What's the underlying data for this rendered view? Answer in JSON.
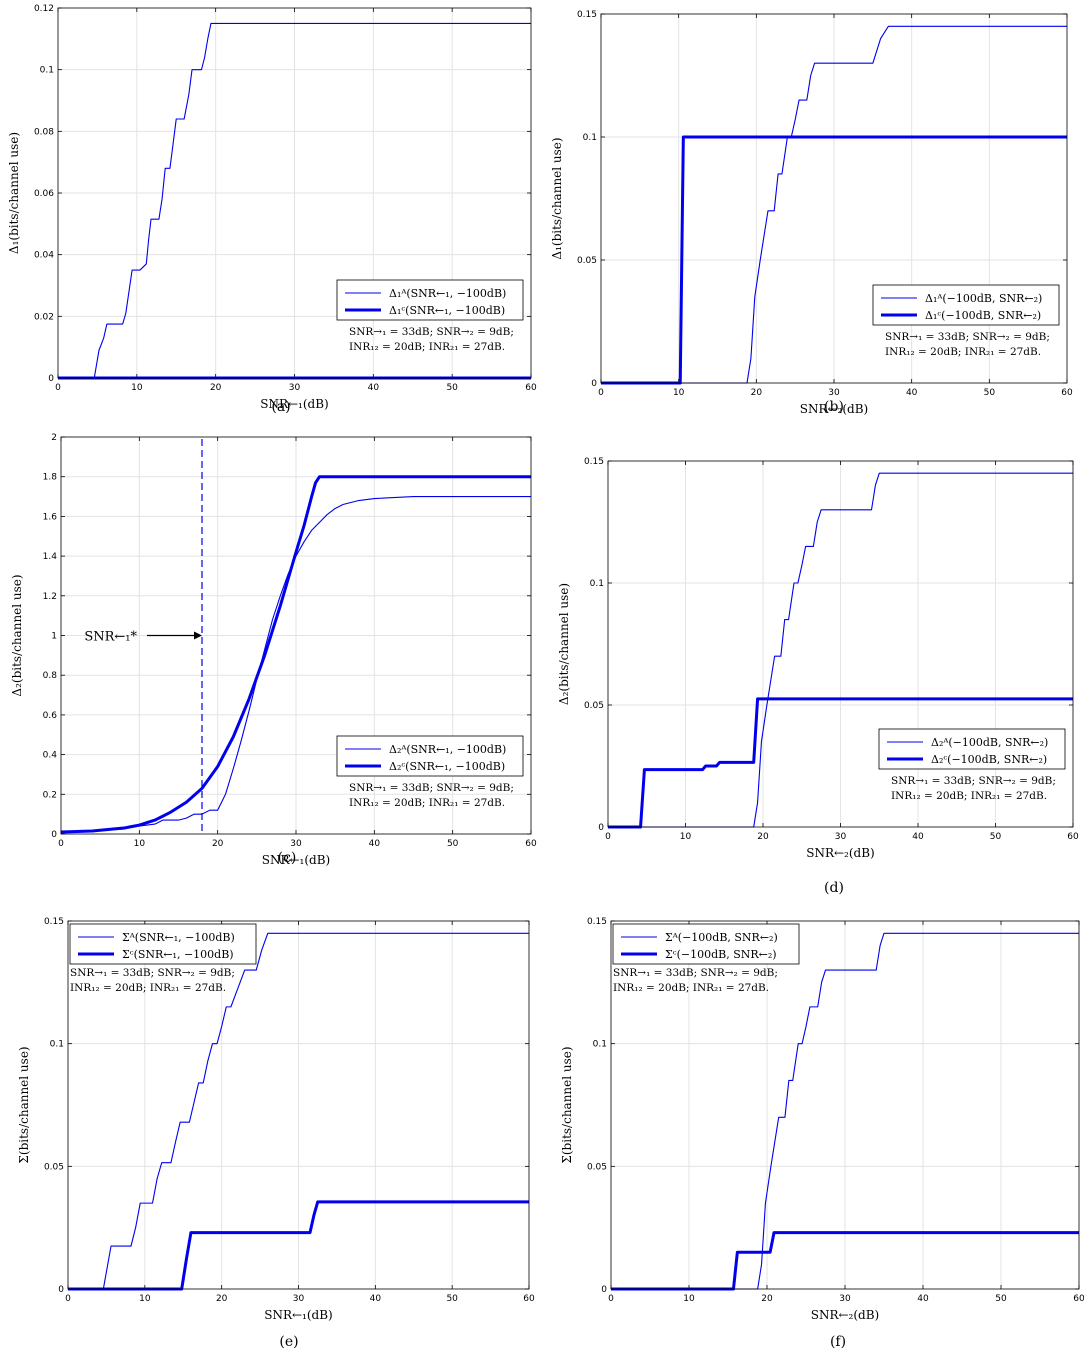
{
  "colors": {
    "series": "#0000ee",
    "axis": "#000000",
    "grid": "#e3e3e3"
  },
  "chart_data": [
    {
      "id": "a",
      "type": "line",
      "panel_label": "(a)",
      "xlabel": "SNR←₁(dB)",
      "ylabel": "Δ₁(bits/channel use)",
      "xlim": [
        0,
        60
      ],
      "ylim": [
        0,
        0.12
      ],
      "xticks": [
        0,
        10,
        20,
        30,
        40,
        50,
        60
      ],
      "yticks": [
        0,
        0.02,
        0.04,
        0.06,
        0.08,
        0.1,
        0.12
      ],
      "ytick_labels": [
        "0",
        "0.02",
        "0.04",
        "0.06",
        "0.08",
        "0.1",
        "0.12"
      ],
      "grid": true,
      "legend_position": "lower-right",
      "notes": [
        "SNR→₁ = 33dB; SNR→₂ = 9dB;",
        "INR₁₂ = 20dB; INR₂₁ = 27dB."
      ],
      "series": [
        {
          "name": "Δ₁ᴬ(SNR←₁, −100dB)",
          "width": "thin",
          "x": [
            0,
            4.6,
            5.2,
            5.8,
            6.2,
            8.2,
            8.6,
            9.0,
            9.4,
            10.4,
            11.2,
            11.5,
            11.8,
            12.8,
            13.2,
            13.6,
            14.2,
            14.6,
            15.0,
            16.0,
            16.6,
            17.0,
            17.4,
            18.2,
            18.6,
            19.0,
            19.4,
            19.8,
            60
          ],
          "y": [
            0,
            0,
            0.009,
            0.013,
            0.0175,
            0.0175,
            0.021,
            0.028,
            0.035,
            0.035,
            0.037,
            0.045,
            0.0515,
            0.0515,
            0.058,
            0.068,
            0.068,
            0.076,
            0.084,
            0.084,
            0.092,
            0.1,
            0.1,
            0.1,
            0.104,
            0.11,
            0.115,
            0.115,
            0.115
          ]
        },
        {
          "name": "Δ₁ᶜ(SNR←₁, −100dB)",
          "width": "thick",
          "x": [
            0,
            60
          ],
          "y": [
            0,
            0
          ]
        }
      ]
    },
    {
      "id": "b",
      "type": "line",
      "panel_label": "(b)",
      "xlabel": "SNR←₂(dB)",
      "ylabel": "Δ₁(bits/channel use)",
      "xlim": [
        0,
        60
      ],
      "ylim": [
        0,
        0.15
      ],
      "xticks": [
        0,
        10,
        20,
        30,
        40,
        50,
        60
      ],
      "yticks": [
        0,
        0.05,
        0.1,
        0.15
      ],
      "ytick_labels": [
        "0",
        "0.05",
        "0.1",
        "0.15"
      ],
      "grid": true,
      "legend_position": "lower-right",
      "notes": [
        "SNR→₁ = 33dB; SNR→₂ = 9dB;",
        "INR₁₂ = 20dB; INR₂₁ = 27dB."
      ],
      "series": [
        {
          "name": "Δ₁ᴬ(−100dB, SNR←₂)",
          "width": "thin",
          "x": [
            0,
            18.8,
            19.3,
            19.8,
            20.5,
            21.0,
            21.5,
            22.3,
            22.8,
            23.3,
            24.0,
            24.5,
            25.0,
            25.5,
            26.5,
            27.0,
            27.5,
            28.5,
            35.0,
            35.5,
            36.0,
            37.0,
            60
          ],
          "y": [
            0,
            0,
            0.01,
            0.035,
            0.05,
            0.06,
            0.07,
            0.07,
            0.085,
            0.085,
            0.1,
            0.1,
            0.107,
            0.115,
            0.115,
            0.125,
            0.13,
            0.13,
            0.13,
            0.135,
            0.14,
            0.145,
            0.145
          ]
        },
        {
          "name": "Δ₁ᶜ(−100dB, SNR←₂)",
          "width": "thick",
          "x": [
            0,
            10.2,
            10.6,
            60
          ],
          "y": [
            0,
            0,
            0.1,
            0.1
          ]
        }
      ]
    },
    {
      "id": "c",
      "type": "line",
      "panel_label": "(c)",
      "xlabel": "SNR←₁(dB)",
      "ylabel": "Δ₂(bits/channel use)",
      "xlim": [
        0,
        60
      ],
      "ylim": [
        0,
        2
      ],
      "xticks": [
        0,
        10,
        20,
        30,
        40,
        50,
        60
      ],
      "yticks": [
        0,
        0.2,
        0.4,
        0.6,
        0.8,
        1,
        1.2,
        1.4,
        1.6,
        1.8,
        2
      ],
      "ytick_labels": [
        "0",
        "0.2",
        "0.4",
        "0.6",
        "0.8",
        "1",
        "1.2",
        "1.4",
        "1.6",
        "1.8",
        "2"
      ],
      "grid": true,
      "legend_position": "lower-right",
      "notes": [
        "SNR→₁ = 33dB; SNR→₂ = 9dB;",
        "INR₁₂ = 20dB; INR₂₁ = 27dB."
      ],
      "annotation": {
        "text": "SNR←₁*",
        "x_line": 18,
        "arrow_y": 1
      },
      "series": [
        {
          "name": "Δ₂ᴬ(SNR←₁, −100dB)",
          "width": "thin",
          "x": [
            0,
            4,
            8,
            10,
            12,
            13,
            14,
            15,
            16,
            17,
            18,
            19,
            20,
            21,
            22,
            23,
            24,
            25,
            26,
            27,
            28,
            29,
            30,
            31,
            32,
            33,
            34,
            35,
            36,
            38,
            40,
            45,
            50,
            60
          ],
          "y": [
            0.01,
            0.015,
            0.025,
            0.04,
            0.05,
            0.07,
            0.07,
            0.07,
            0.08,
            0.1,
            0.1,
            0.12,
            0.12,
            0.2,
            0.33,
            0.47,
            0.62,
            0.78,
            0.93,
            1.08,
            1.2,
            1.31,
            1.4,
            1.47,
            1.53,
            1.57,
            1.61,
            1.64,
            1.66,
            1.68,
            1.69,
            1.7,
            1.7,
            1.7
          ]
        },
        {
          "name": "Δ₂ᶜ(SNR←₁, −100dB)",
          "width": "thick",
          "x": [
            0,
            4,
            8,
            10,
            12,
            14,
            16,
            18,
            20,
            22,
            24,
            26,
            28,
            30,
            31,
            32,
            32.5,
            33,
            60
          ],
          "y": [
            0.01,
            0.015,
            0.03,
            0.045,
            0.07,
            0.11,
            0.16,
            0.23,
            0.34,
            0.49,
            0.68,
            0.9,
            1.15,
            1.42,
            1.55,
            1.7,
            1.77,
            1.8,
            1.8
          ]
        }
      ]
    },
    {
      "id": "d",
      "type": "line",
      "panel_label": "(d)",
      "xlabel": "SNR←₂(dB)",
      "ylabel": "Δ₂(bits/channel use)",
      "xlim": [
        0,
        60
      ],
      "ylim": [
        0,
        0.15
      ],
      "xticks": [
        0,
        10,
        20,
        30,
        40,
        50,
        60
      ],
      "yticks": [
        0,
        0.05,
        0.1,
        0.15
      ],
      "ytick_labels": [
        "0",
        "0.05",
        "0.1",
        "0.15"
      ],
      "grid": true,
      "legend_position": "lower-right",
      "notes": [
        "SNR→₁ = 33dB; SNR→₂ = 9dB;",
        "INR₁₂ = 20dB; INR₂₁ = 27dB."
      ],
      "series": [
        {
          "name": "Δ₂ᴬ(−100dB, SNR←₂)",
          "width": "thin",
          "x": [
            0,
            18.8,
            19.3,
            19.8,
            20.5,
            21.0,
            21.5,
            22.3,
            22.8,
            23.3,
            24.0,
            24.5,
            25.0,
            25.5,
            26.5,
            27.0,
            27.5,
            28.5,
            34.0,
            34.5,
            35.0,
            60
          ],
          "y": [
            0,
            0,
            0.01,
            0.035,
            0.05,
            0.06,
            0.07,
            0.07,
            0.085,
            0.085,
            0.1,
            0.1,
            0.107,
            0.115,
            0.115,
            0.125,
            0.13,
            0.13,
            0.13,
            0.14,
            0.145,
            0.145
          ]
        },
        {
          "name": "Δ₂ᶜ(−100dB, SNR←₂)",
          "width": "thick",
          "x": [
            0,
            4.2,
            4.7,
            12.2,
            12.6,
            14.0,
            14.4,
            18.8,
            19.3,
            60
          ],
          "y": [
            0,
            0,
            0.0235,
            0.0235,
            0.025,
            0.025,
            0.0265,
            0.0265,
            0.0525,
            0.0525
          ]
        }
      ]
    },
    {
      "id": "e",
      "type": "line",
      "panel_label": "(e)",
      "xlabel": "SNR←₁(dB)",
      "ylabel": "Σ(bits/channel use)",
      "xlim": [
        0,
        60
      ],
      "ylim": [
        0,
        0.15
      ],
      "xticks": [
        0,
        10,
        20,
        30,
        40,
        50,
        60
      ],
      "yticks": [
        0,
        0.05,
        0.1,
        0.15
      ],
      "ytick_labels": [
        "0",
        "0.05",
        "0.1",
        "0.15"
      ],
      "grid": true,
      "legend_position": "top-left",
      "notes": [
        "SNR→₁ = 33dB; SNR→₂ = 9dB;",
        "INR₁₂ = 20dB; INR₂₁ = 27dB."
      ],
      "series": [
        {
          "name": "Σᴬ(SNR←₁, −100dB)",
          "width": "thin",
          "x": [
            0,
            4.6,
            5.6,
            8.2,
            8.8,
            9.4,
            11.0,
            11.6,
            12.2,
            13.4,
            14.0,
            14.6,
            15.8,
            16.4,
            17.0,
            17.6,
            18.2,
            18.8,
            19.4,
            20.0,
            20.6,
            21.2,
            21.8,
            22.4,
            23.0,
            24.5,
            25.2,
            26.0,
            60
          ],
          "y": [
            0,
            0,
            0.0175,
            0.0175,
            0.025,
            0.035,
            0.035,
            0.045,
            0.0515,
            0.0515,
            0.06,
            0.068,
            0.068,
            0.076,
            0.084,
            0.084,
            0.093,
            0.1,
            0.1,
            0.107,
            0.115,
            0.115,
            0.12,
            0.125,
            0.13,
            0.13,
            0.138,
            0.145,
            0.145
          ]
        },
        {
          "name": "Σᶜ(SNR←₁, −100dB)",
          "width": "thick",
          "x": [
            0,
            14.8,
            15.4,
            16.0,
            31.5,
            32.0,
            32.5,
            60
          ],
          "y": [
            0,
            0,
            0.012,
            0.023,
            0.023,
            0.03,
            0.0355,
            0.0355
          ]
        }
      ]
    },
    {
      "id": "f",
      "type": "line",
      "panel_label": "(f)",
      "xlabel": "SNR←₂(dB)",
      "ylabel": "Σ(bits/channel use)",
      "xlim": [
        0,
        60
      ],
      "ylim": [
        0,
        0.15
      ],
      "xticks": [
        0,
        10,
        20,
        30,
        40,
        50,
        60
      ],
      "yticks": [
        0,
        0.05,
        0.1,
        0.15
      ],
      "ytick_labels": [
        "0",
        "0.05",
        "0.1",
        "0.15"
      ],
      "grid": true,
      "legend_position": "top-left",
      "notes": [
        "SNR→₁ = 33dB; SNR→₂ = 9dB;",
        "INR₁₂ = 20dB; INR₂₁ = 27dB."
      ],
      "series": [
        {
          "name": "Σᴬ(−100dB, SNR←₂)",
          "width": "thin",
          "x": [
            0,
            18.8,
            19.3,
            19.8,
            20.5,
            21.0,
            21.5,
            22.3,
            22.8,
            23.3,
            24.0,
            24.5,
            25.0,
            25.5,
            26.5,
            27.0,
            27.5,
            28.5,
            34.0,
            34.5,
            35.0,
            60
          ],
          "y": [
            0,
            0,
            0.01,
            0.035,
            0.05,
            0.06,
            0.07,
            0.07,
            0.085,
            0.085,
            0.1,
            0.1,
            0.107,
            0.115,
            0.115,
            0.125,
            0.13,
            0.13,
            0.13,
            0.14,
            0.145,
            0.145
          ]
        },
        {
          "name": "Σᶜ(−100dB, SNR←₂)",
          "width": "thick",
          "x": [
            0,
            15.7,
            16.2,
            20.4,
            20.9,
            60
          ],
          "y": [
            0,
            0,
            0.015,
            0.015,
            0.023,
            0.023
          ]
        }
      ]
    }
  ]
}
